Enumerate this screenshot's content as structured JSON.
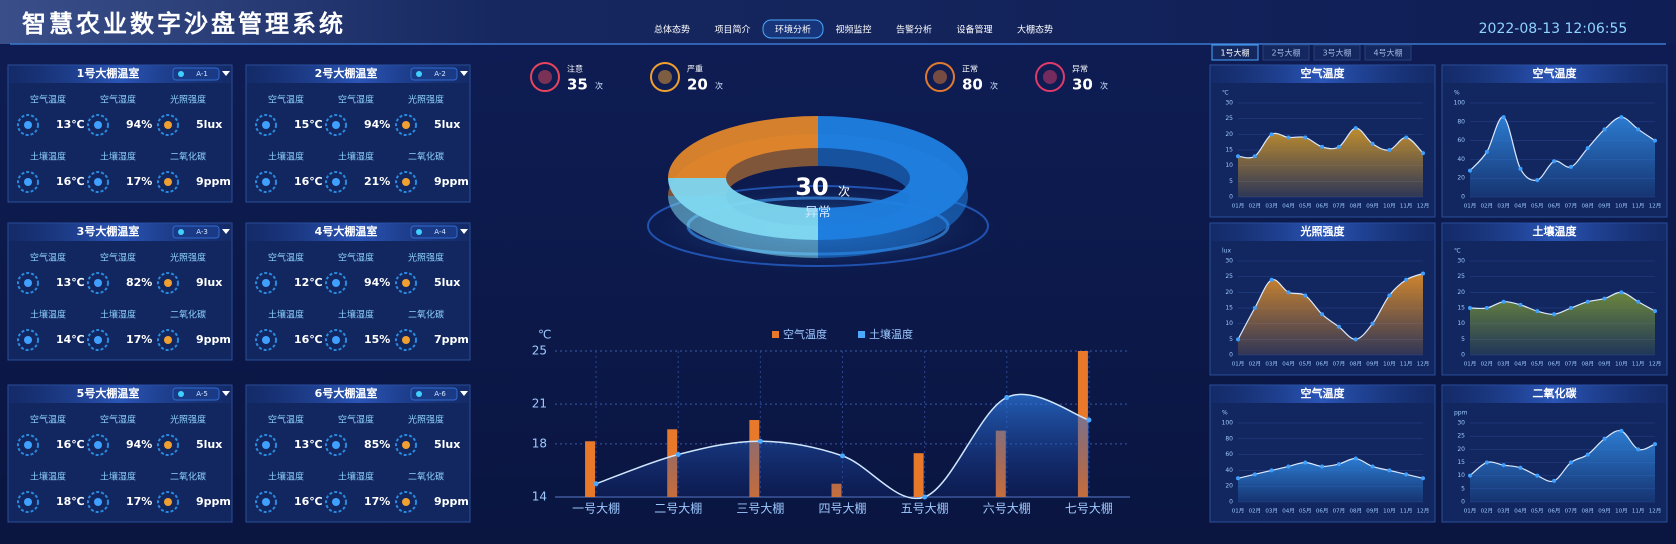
{
  "header": {
    "title": "智慧农业数字沙盘管理系统",
    "datetime": "2022-08-13 12:06:55",
    "nav": [
      "总体态势",
      "项目简介",
      "环境分析",
      "视频监控",
      "告警分析",
      "设备管理",
      "大棚态势"
    ],
    "nav_active": 2
  },
  "metric_labels": [
    "空气温度",
    "空气湿度",
    "光照强度",
    "土壤温度",
    "土壤湿度",
    "二氧化碳"
  ],
  "greenhouses": [
    {
      "title": "1号大棚温室",
      "tag": "A-1",
      "values": [
        "13℃",
        "94%",
        "5lux",
        "16℃",
        "17%",
        "9ppm"
      ]
    },
    {
      "title": "2号大棚温室",
      "tag": "A-2",
      "values": [
        "15℃",
        "94%",
        "5lux",
        "16℃",
        "21%",
        "9ppm"
      ]
    },
    {
      "title": "3号大棚温室",
      "tag": "A-3",
      "values": [
        "13℃",
        "82%",
        "9lux",
        "14℃",
        "17%",
        "9ppm"
      ]
    },
    {
      "title": "4号大棚温室",
      "tag": "A-4",
      "values": [
        "12℃",
        "94%",
        "5lux",
        "16℃",
        "15%",
        "7ppm"
      ]
    },
    {
      "title": "5号大棚温室",
      "tag": "A-5",
      "values": [
        "16℃",
        "94%",
        "5lux",
        "18℃",
        "17%",
        "9ppm"
      ]
    },
    {
      "title": "6号大棚温室",
      "tag": "A-6",
      "values": [
        "13℃",
        "85%",
        "5lux",
        "16℃",
        "17%",
        "9ppm"
      ]
    }
  ],
  "alerts": [
    {
      "label": "注意",
      "count": 35,
      "unit": "次",
      "color": "#e8455a"
    },
    {
      "label": "严重",
      "count": 20,
      "unit": "次",
      "color": "#f0a030"
    },
    {
      "label": "正常",
      "count": 80,
      "unit": "次",
      "color": "#e07a30"
    },
    {
      "label": "异常",
      "count": 30,
      "unit": "次",
      "color": "#e03a6a"
    }
  ],
  "tabs": [
    "1号大棚",
    "2号大棚",
    "3号大棚",
    "4号大棚"
  ],
  "tab_active": 0,
  "chart_data": [
    {
      "type": "pie",
      "values": [
        50,
        25,
        25
      ],
      "colors": [
        "#1f7fe0",
        "#7fd8f0",
        "#e0862a"
      ],
      "center_value": 30,
      "center_unit": "次",
      "center_label": "异常"
    },
    {
      "type": "combo",
      "y_label": "℃",
      "categories": [
        "一号大棚",
        "二号大棚",
        "三号大棚",
        "四号大棚",
        "五号大棚",
        "六号大棚",
        "七号大棚"
      ],
      "ylim": [
        14,
        25
      ],
      "yticks": [
        14,
        18,
        21,
        25
      ],
      "grid": true,
      "series": [
        {
          "name": "空气温度",
          "type": "bar",
          "color": "#e8782a",
          "values": [
            18.2,
            19.1,
            19.8,
            15.0,
            17.3,
            19.0,
            25
          ]
        },
        {
          "name": "土壤温度",
          "type": "line",
          "color": "#4aa8ff",
          "values": [
            15.0,
            17.2,
            18.2,
            17.1,
            14.0,
            21.5,
            19.8
          ]
        }
      ]
    },
    {
      "type": "area",
      "title": "空气温度",
      "y_label": "℃",
      "color": "#c8922a",
      "categories": [
        "01月",
        "02月",
        "03月",
        "04月",
        "05月",
        "06月",
        "07月",
        "08月",
        "09月",
        "10月",
        "11月",
        "12月"
      ],
      "ylim": [
        0,
        30
      ],
      "yticks": [
        0,
        5,
        10,
        15,
        20,
        25,
        30
      ],
      "values": [
        13,
        13,
        20,
        19,
        19,
        16,
        16,
        22,
        17,
        15,
        19,
        14
      ]
    },
    {
      "type": "area",
      "title": "空气温度",
      "y_label": "%",
      "color": "#2d7fd6",
      "categories": [
        "01月",
        "02月",
        "03月",
        "04月",
        "05月",
        "06月",
        "07月",
        "08月",
        "09月",
        "10月",
        "11月",
        "12月"
      ],
      "ylim": [
        0,
        100
      ],
      "yticks": [
        0,
        20,
        40,
        60,
        80,
        100
      ],
      "values": [
        28,
        48,
        85,
        30,
        18,
        38,
        32,
        52,
        72,
        85,
        72,
        60
      ]
    },
    {
      "type": "area",
      "title": "光照强度",
      "y_label": "lux",
      "color": "#d98a2a",
      "categories": [
        "01月",
        "02月",
        "03月",
        "04月",
        "05月",
        "06月",
        "07月",
        "08月",
        "09月",
        "10月",
        "11月",
        "12月"
      ],
      "ylim": [
        0,
        30
      ],
      "yticks": [
        0,
        5,
        10,
        15,
        20,
        25,
        30
      ],
      "values": [
        5,
        15,
        24,
        20,
        19,
        13,
        9,
        5,
        10,
        19,
        24,
        26
      ]
    },
    {
      "type": "area",
      "title": "土壤温度",
      "y_label": "℃",
      "color": "#6f8a3a",
      "categories": [
        "01月",
        "02月",
        "03月",
        "04月",
        "05月",
        "06月",
        "07月",
        "08月",
        "09月",
        "10月",
        "11月",
        "12月"
      ],
      "ylim": [
        0,
        30
      ],
      "yticks": [
        0,
        5,
        10,
        15,
        20,
        25,
        30
      ],
      "values": [
        15,
        15,
        17,
        16,
        14,
        13,
        15,
        17,
        18,
        20,
        17,
        14
      ]
    },
    {
      "type": "area",
      "title": "空气温度",
      "y_label": "%",
      "color": "#2d7fd6",
      "categories": [
        "01月",
        "02月",
        "03月",
        "04月",
        "05月",
        "06月",
        "07月",
        "08月",
        "09月",
        "10月",
        "11月",
        "12月"
      ],
      "ylim": [
        0,
        100
      ],
      "yticks": [
        0,
        20,
        40,
        60,
        80,
        100
      ],
      "values": [
        30,
        35,
        40,
        45,
        50,
        45,
        48,
        55,
        45,
        40,
        35,
        30
      ]
    },
    {
      "type": "area",
      "title": "二氧化碳",
      "y_label": "ppm",
      "color": "#2d7fd6",
      "categories": [
        "01月",
        "02月",
        "03月",
        "04月",
        "05月",
        "06月",
        "07月",
        "08月",
        "09月",
        "10月",
        "11月",
        "12月"
      ],
      "ylim": [
        0,
        30
      ],
      "yticks": [
        0,
        5,
        10,
        15,
        20,
        25,
        30
      ],
      "values": [
        10,
        15,
        14,
        13,
        10,
        8,
        15,
        18,
        24,
        27,
        20,
        22
      ]
    }
  ]
}
